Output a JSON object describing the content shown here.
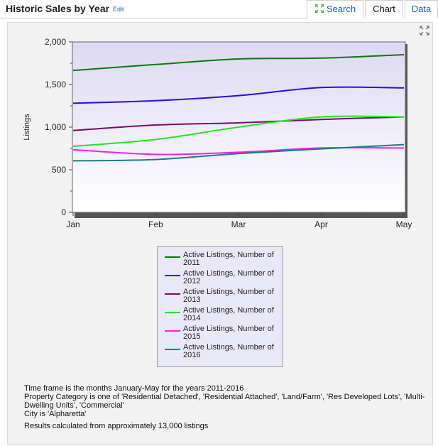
{
  "header": {
    "title": "Historic Sales by Year",
    "edit_label": "Edit"
  },
  "tabs": [
    {
      "label": "Search",
      "icon": "search-expand-icon",
      "active": false
    },
    {
      "label": "Chart",
      "active": true
    },
    {
      "label": "Data",
      "active": false
    }
  ],
  "colors": {
    "plot_top": "#ddd9f3",
    "plot_bottom": "#ffffff",
    "link": "#1a5fb4"
  },
  "chart_data": {
    "type": "line",
    "title": "",
    "xlabel": "",
    "ylabel": "Listings",
    "categories": [
      "Jan",
      "Feb",
      "Mar",
      "Apr",
      "May"
    ],
    "ylim": [
      0,
      2000
    ],
    "yticks": [
      "0",
      "500",
      "1,000",
      "1,500",
      "2,000"
    ],
    "ytick_values": [
      0,
      500,
      1000,
      1500,
      2000
    ],
    "grid": false,
    "legend_position": "bottom",
    "series": [
      {
        "name": "Active Listings, Number of 2011",
        "color": "#0a7a0a",
        "values": [
          1665,
          1735,
          1800,
          1810,
          1850
        ]
      },
      {
        "name": "Active Listings, Number of 2012",
        "color": "#2a0ae0",
        "values": [
          1280,
          1310,
          1370,
          1465,
          1460
        ]
      },
      {
        "name": "Active Listings, Number of 2013",
        "color": "#7a0a6a",
        "values": [
          960,
          1025,
          1050,
          1090,
          1120
        ]
      },
      {
        "name": "Active Listings, Number of 2014",
        "color": "#1fe81f",
        "values": [
          775,
          855,
          1000,
          1120,
          1120
        ]
      },
      {
        "name": "Active Listings, Number of 2015",
        "color": "#f21ef2",
        "values": [
          735,
          680,
          705,
          755,
          755
        ]
      },
      {
        "name": "Active Listings, Number of 2016",
        "color": "#128080",
        "values": [
          605,
          620,
          690,
          745,
          795
        ]
      }
    ]
  },
  "footnotes": {
    "line1": "Time frame is the months January-May for the years 2011-2016",
    "line2": "Property Category is one of 'Residential Detached', 'Residential Attached', 'Land/Farm', 'Res Developed Lots', 'Multi-Dwelling Units', 'Commercial'",
    "line3": "City is 'Alpharetta'",
    "line4": "Results calculated from approximately 13,000 listings"
  }
}
